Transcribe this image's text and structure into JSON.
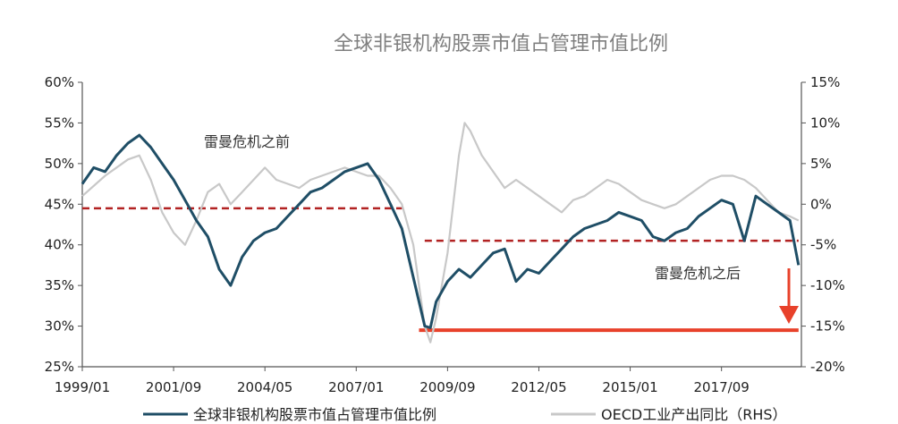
{
  "chart_data": {
    "type": "line",
    "title": "全球非银机构股票市值占管理市值比例",
    "x_ticks": [
      "1999/01",
      "2001/09",
      "2004/05",
      "2007/01",
      "2009/09",
      "2012/05",
      "2015/01",
      "2017/09"
    ],
    "y_left": {
      "ticks": [
        "25%",
        "30%",
        "35%",
        "40%",
        "45%",
        "50%",
        "55%",
        "60%"
      ],
      "range": [
        25,
        60
      ]
    },
    "y_right": {
      "ticks": [
        "-20%",
        "-15%",
        "-10%",
        "-5%",
        "0%",
        "5%",
        "10%",
        "15%"
      ],
      "range": [
        -20,
        15
      ]
    },
    "annotations": {
      "before": "雷曼危机之前",
      "after": "雷曼危机之后"
    },
    "series": [
      {
        "name": "全球非银机构股票市值占管理市值比例",
        "axis": "left",
        "color": "#1f4e66",
        "points": [
          [
            "1999/01",
            47.5
          ],
          [
            "1999/05",
            49.5
          ],
          [
            "1999/09",
            49
          ],
          [
            "2000/01",
            51
          ],
          [
            "2000/05",
            52.5
          ],
          [
            "2000/09",
            53.5
          ],
          [
            "2001/01",
            52
          ],
          [
            "2001/05",
            50
          ],
          [
            "2001/09",
            48
          ],
          [
            "2002/01",
            45.5
          ],
          [
            "2002/05",
            43
          ],
          [
            "2002/09",
            41
          ],
          [
            "2003/01",
            37
          ],
          [
            "2003/05",
            35
          ],
          [
            "2003/09",
            38.5
          ],
          [
            "2004/01",
            40.5
          ],
          [
            "2004/05",
            41.5
          ],
          [
            "2004/09",
            42
          ],
          [
            "2005/01",
            43.5
          ],
          [
            "2005/05",
            45
          ],
          [
            "2005/09",
            46.5
          ],
          [
            "2006/01",
            47
          ],
          [
            "2006/05",
            48
          ],
          [
            "2006/09",
            49
          ],
          [
            "2007/01",
            49.5
          ],
          [
            "2007/05",
            50
          ],
          [
            "2007/09",
            48
          ],
          [
            "2008/01",
            45
          ],
          [
            "2008/05",
            42
          ],
          [
            "2008/09",
            36
          ],
          [
            "2009/01",
            30
          ],
          [
            "2009/03",
            29.8
          ],
          [
            "2009/05",
            33
          ],
          [
            "2009/09",
            35.5
          ],
          [
            "2010/01",
            37
          ],
          [
            "2010/05",
            36
          ],
          [
            "2010/09",
            37.5
          ],
          [
            "2011/01",
            39
          ],
          [
            "2011/05",
            39.5
          ],
          [
            "2011/09",
            35.5
          ],
          [
            "2012/01",
            37
          ],
          [
            "2012/05",
            36.5
          ],
          [
            "2012/09",
            38
          ],
          [
            "2013/01",
            39.5
          ],
          [
            "2013/05",
            41
          ],
          [
            "2013/09",
            42
          ],
          [
            "2014/01",
            42.5
          ],
          [
            "2014/05",
            43
          ],
          [
            "2014/09",
            44
          ],
          [
            "2015/01",
            43.5
          ],
          [
            "2015/05",
            43
          ],
          [
            "2015/09",
            41
          ],
          [
            "2016/01",
            40.5
          ],
          [
            "2016/05",
            41.5
          ],
          [
            "2016/09",
            42
          ],
          [
            "2017/01",
            43.5
          ],
          [
            "2017/05",
            44.5
          ],
          [
            "2017/09",
            45.5
          ],
          [
            "2018/01",
            45
          ],
          [
            "2018/05",
            40.5
          ],
          [
            "2018/09",
            46
          ],
          [
            "2019/01",
            45
          ],
          [
            "2019/05",
            44
          ],
          [
            "2019/09",
            43
          ],
          [
            "2019/12",
            37.5
          ]
        ]
      },
      {
        "name": "OECD工业产出同比（RHS）",
        "axis": "right",
        "color": "#c8c8c8",
        "points": [
          [
            "1999/01",
            1
          ],
          [
            "1999/09",
            3.5
          ],
          [
            "2000/05",
            5.5
          ],
          [
            "2000/09",
            6
          ],
          [
            "2001/01",
            3
          ],
          [
            "2001/05",
            -1
          ],
          [
            "2001/09",
            -3.5
          ],
          [
            "2002/01",
            -5
          ],
          [
            "2002/05",
            -2
          ],
          [
            "2002/09",
            1.5
          ],
          [
            "2003/01",
            2.5
          ],
          [
            "2003/05",
            0
          ],
          [
            "2003/09",
            1.5
          ],
          [
            "2004/05",
            4.5
          ],
          [
            "2004/09",
            3
          ],
          [
            "2005/05",
            2
          ],
          [
            "2005/09",
            3
          ],
          [
            "2006/05",
            4
          ],
          [
            "2006/09",
            4.5
          ],
          [
            "2007/05",
            3.5
          ],
          [
            "2007/09",
            3.5
          ],
          [
            "2008/01",
            2
          ],
          [
            "2008/05",
            0
          ],
          [
            "2008/09",
            -5
          ],
          [
            "2009/01",
            -15
          ],
          [
            "2009/03",
            -17
          ],
          [
            "2009/05",
            -14
          ],
          [
            "2009/09",
            -6
          ],
          [
            "2010/01",
            6
          ],
          [
            "2010/03",
            10
          ],
          [
            "2010/05",
            9
          ],
          [
            "2010/09",
            6
          ],
          [
            "2011/01",
            4
          ],
          [
            "2011/05",
            2
          ],
          [
            "2011/09",
            3
          ],
          [
            "2012/05",
            1
          ],
          [
            "2012/09",
            0
          ],
          [
            "2013/01",
            -1
          ],
          [
            "2013/05",
            0.5
          ],
          [
            "2013/09",
            1
          ],
          [
            "2014/01",
            2
          ],
          [
            "2014/05",
            3
          ],
          [
            "2014/09",
            2.5
          ],
          [
            "2015/01",
            1.5
          ],
          [
            "2015/05",
            0.5
          ],
          [
            "2015/09",
            0
          ],
          [
            "2016/01",
            -0.5
          ],
          [
            "2016/05",
            0
          ],
          [
            "2016/09",
            1
          ],
          [
            "2017/01",
            2
          ],
          [
            "2017/05",
            3
          ],
          [
            "2017/09",
            3.5
          ],
          [
            "2018/01",
            3.5
          ],
          [
            "2018/05",
            3
          ],
          [
            "2018/09",
            2
          ],
          [
            "2019/01",
            0.5
          ],
          [
            "2019/05",
            -1
          ],
          [
            "2019/09",
            -1.5
          ],
          [
            "2019/12",
            -2
          ]
        ]
      }
    ],
    "reference_lines": [
      {
        "axis": "left",
        "value": 44.5,
        "from": "1999/01",
        "to": "2008/05",
        "style": "dashed",
        "color": "#b22222"
      },
      {
        "axis": "left",
        "value": 40.5,
        "from": "2009/01",
        "to": "2019/12",
        "style": "dashed",
        "color": "#b22222"
      },
      {
        "axis": "left",
        "value": 29.5,
        "from": "2008/11",
        "to": "2019/12",
        "style": "solid",
        "color": "#e8412a"
      }
    ],
    "arrow_color": "#e8412a",
    "legend": {
      "placement": "bottom",
      "items": [
        "全球非银机构股票市值占管理市值比例",
        "OECD工业产出同比（RHS）"
      ]
    },
    "grid": false
  }
}
